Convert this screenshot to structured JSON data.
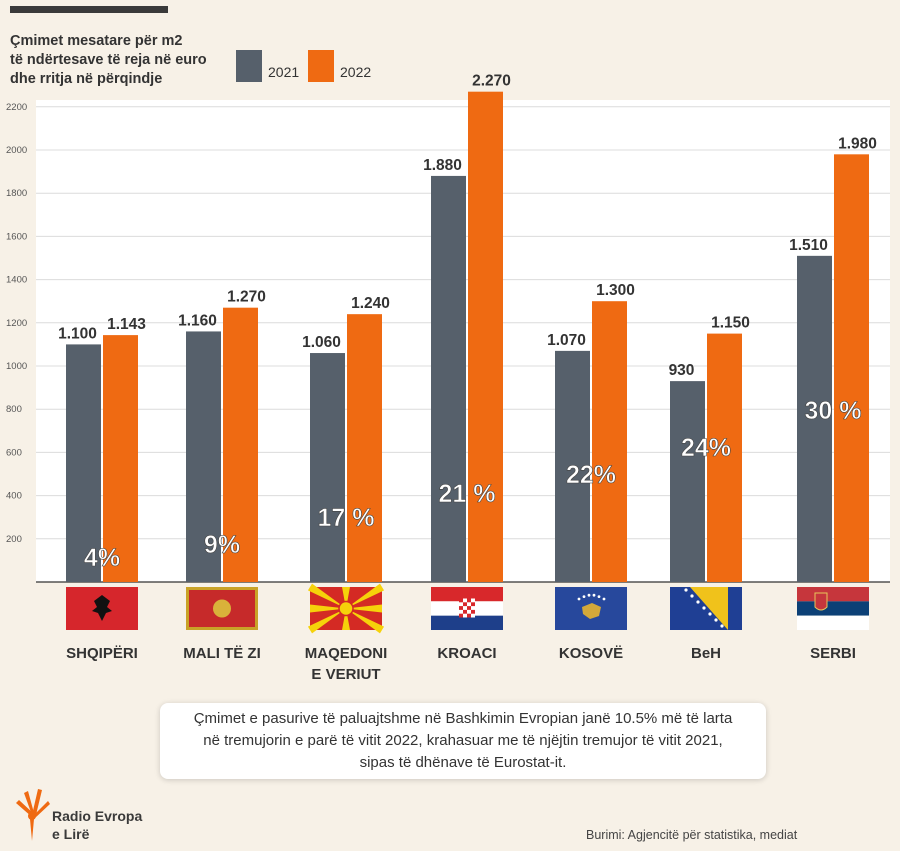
{
  "chart_data": {
    "type": "bar",
    "title_lines": [
      "Çmimet mesatare për m2",
      "të ndërtesave të reja në euro",
      "dhe rritja në përqindje"
    ],
    "categories": [
      {
        "name_lines": [
          "SHQIPËRI"
        ],
        "flag": "albania-flag"
      },
      {
        "name_lines": [
          "MALI TË ZI"
        ],
        "flag": "montenegro-flag"
      },
      {
        "name_lines": [
          "MAQEDONI",
          "E VERIUT"
        ],
        "flag": "north-macedonia-flag"
      },
      {
        "name_lines": [
          "KROACI"
        ],
        "flag": "croatia-flag"
      },
      {
        "name_lines": [
          "KOSOVË"
        ],
        "flag": "kosovo-flag"
      },
      {
        "name_lines": [
          "BeH"
        ],
        "flag": "bosnia-flag"
      },
      {
        "name_lines": [
          "SERBI"
        ],
        "flag": "serbia-flag"
      }
    ],
    "series": [
      {
        "name": "2021",
        "color": "#56606b",
        "values": [
          1100,
          1160,
          1060,
          1880,
          1070,
          930,
          1510
        ],
        "labels": [
          "1.100",
          "1.160",
          "1.060",
          "1.880",
          "1.070",
          "930",
          "1.510"
        ]
      },
      {
        "name": "2022",
        "color": "#ef6a12",
        "values": [
          1143,
          1270,
          1240,
          2270,
          1300,
          1150,
          1980
        ],
        "labels": [
          "1.143",
          "1.270",
          "1.240",
          "2.270",
          "1.300",
          "1.150",
          "1.980"
        ]
      }
    ],
    "growth": [
      {
        "label": "4%",
        "value": 4
      },
      {
        "label": "9%",
        "value": 9
      },
      {
        "label": "17 %",
        "value": 17
      },
      {
        "label": "21 %",
        "value": 21
      },
      {
        "label": "22%",
        "value": 22
      },
      {
        "label": "24%",
        "value": 24
      },
      {
        "label": "30 %",
        "value": 30
      }
    ],
    "y_ticks": [
      200,
      400,
      600,
      800,
      1000,
      1200,
      1400,
      1600,
      1800,
      2000,
      2200
    ],
    "ylim": [
      0,
      2300
    ],
    "xlabel": "",
    "ylabel": "",
    "grid": true
  },
  "note_lines": [
    "Çmimet e pasurive të paluajtshme në Bashkimin Evropian janë 10.5% më të larta",
    "në tremujorin e parë të vitit 2022, krahasuar me të njëjtin tremujor të vitit 2021,",
    "sipas të dhënave të Eurostat-it."
  ],
  "logo": {
    "line1": "Radio Evropa",
    "line2": "e Lirë"
  },
  "source": "Burimi: Agjencitë për statistika, mediat",
  "colors": {
    "bg": "#f7f1e7",
    "accent": "#ef6a12",
    "dark": "#56606b"
  }
}
